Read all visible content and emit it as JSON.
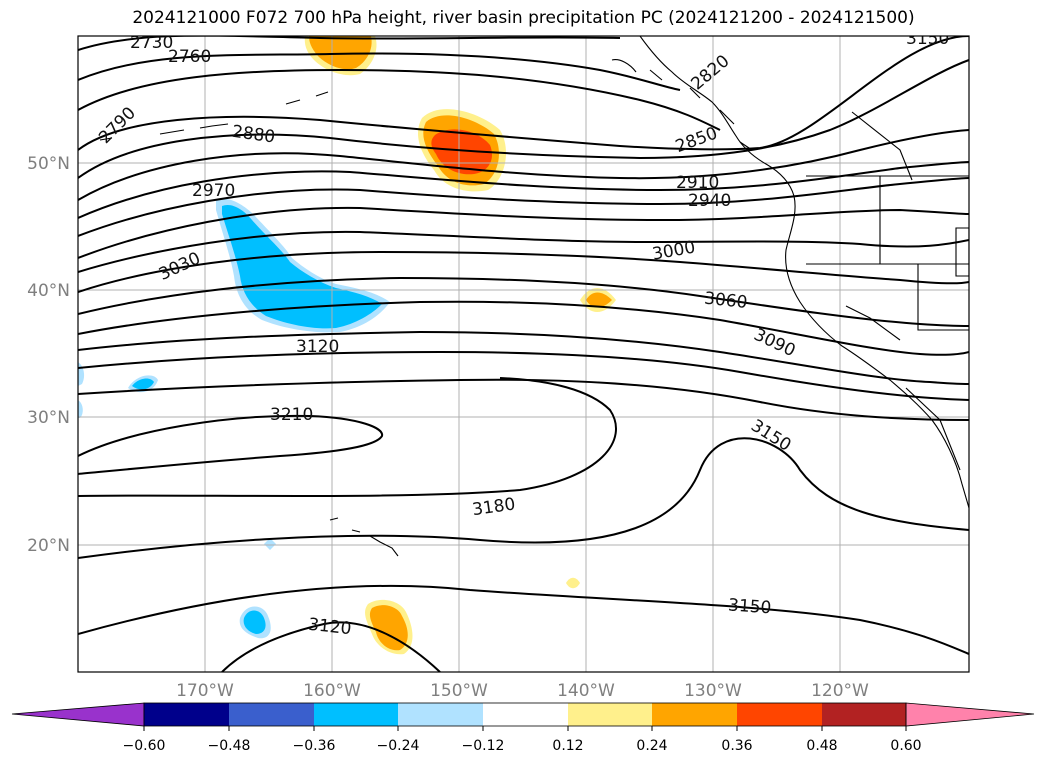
{
  "title": "2024121000 F072 700 hPa height, river basin precipitation PC (2024121200 - 2024121500)",
  "axes": {
    "lat_labels": [
      "50°N",
      "40°N",
      "30°N",
      "20°N"
    ],
    "lon_labels": [
      "170°W",
      "160°W",
      "150°W",
      "140°W",
      "130°W",
      "120°W"
    ]
  },
  "contour_labels": [
    "2730",
    "2760",
    "2790",
    "2820",
    "2850",
    "2880",
    "2910",
    "2940",
    "2970",
    "3000",
    "3030",
    "3060",
    "3090",
    "3120",
    "3150",
    "3150",
    "3180",
    "3210",
    "3120",
    "3150"
  ],
  "colorbar": {
    "colors": [
      "#9932cc",
      "#00008b",
      "#3a5fcd",
      "#00bfff",
      "#b0e2ff",
      "#ffffff",
      "#fff08c",
      "#ffa500",
      "#ff4500",
      "#b22222",
      "#ff82ab"
    ],
    "tick_labels": [
      "−0.60",
      "−0.48",
      "−0.36",
      "−0.24",
      "−0.12",
      "0.12",
      "0.24",
      "0.36",
      "0.48",
      "0.60"
    ]
  },
  "legend_colors": {
    "positive_low": "#fff08c",
    "positive_mid": "#ffa500",
    "positive_high": "#ff4500",
    "negative_low": "#b0e2ff",
    "negative_mid": "#00bfff"
  }
}
